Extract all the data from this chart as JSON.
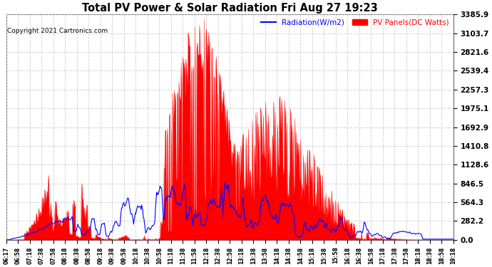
{
  "title": "Total PV Power & Solar Radiation Fri Aug 27 19:23",
  "copyright": "Copyright 2021 Cartronics.com",
  "legend_radiation": "Radiation(W/m2)",
  "legend_pv": "PV Panels(DC Watts)",
  "yticks": [
    0.0,
    282.2,
    564.3,
    846.5,
    1128.6,
    1410.8,
    1692.9,
    1975.1,
    2257.3,
    2539.4,
    2821.6,
    3103.7,
    3385.9
  ],
  "ymax": 3385.9,
  "ymin": 0.0,
  "background_color": "#ffffff",
  "grid_color": "#c8c8c8",
  "pv_color": "#ff0000",
  "radiation_color": "#0000ff",
  "title_color": "#000000",
  "xtick_labels": [
    "06:17",
    "06:58",
    "07:18",
    "07:38",
    "07:58",
    "08:18",
    "08:38",
    "08:58",
    "09:18",
    "09:38",
    "09:58",
    "10:18",
    "10:38",
    "10:58",
    "11:18",
    "11:38",
    "11:58",
    "12:18",
    "12:38",
    "12:58",
    "13:18",
    "13:38",
    "13:58",
    "14:18",
    "14:38",
    "14:58",
    "15:18",
    "15:38",
    "15:58",
    "16:18",
    "16:38",
    "16:58",
    "17:18",
    "17:38",
    "17:58",
    "18:18",
    "18:38",
    "18:58",
    "19:18"
  ]
}
